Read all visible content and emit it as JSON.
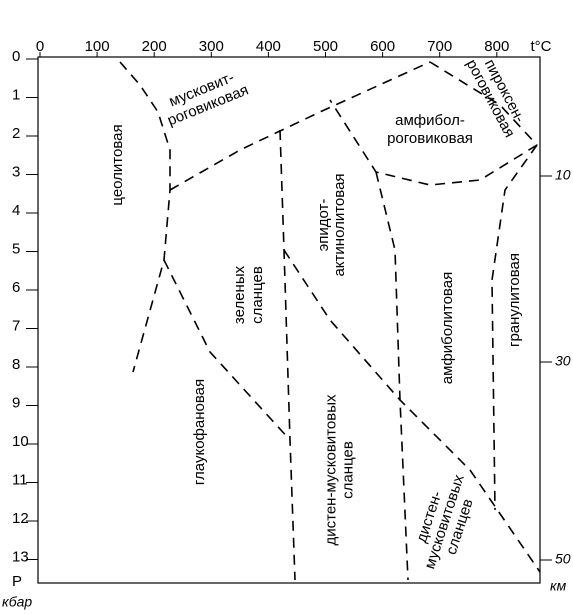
{
  "axes": {
    "top": {
      "ticks": [
        "0",
        "100",
        "200",
        "300",
        "400",
        "500",
        "600",
        "700",
        "800"
      ],
      "label": "t°C"
    },
    "left": {
      "ticks": [
        "0",
        "1",
        "2",
        "3",
        "4",
        "5",
        "6",
        "7",
        "8",
        "9",
        "10",
        "11",
        "12",
        "13"
      ],
      "label": "P",
      "unit": "кбар"
    },
    "right": {
      "ticks": [
        "10",
        "30",
        "50"
      ],
      "unit": "км"
    }
  },
  "facies": [
    {
      "lines": [
        "цеолитовая"
      ]
    },
    {
      "lines": [
        "мусковит-",
        "роговиковая"
      ]
    },
    {
      "lines": [
        "пироксен-",
        "роговиковая"
      ]
    },
    {
      "lines": [
        "амфибол-",
        "роговиковая"
      ]
    },
    {
      "lines": [
        "эпидот-",
        "актинолитовая"
      ]
    },
    {
      "lines": [
        "зеленых",
        "сланцев"
      ]
    },
    {
      "lines": [
        "амфиболитовая"
      ]
    },
    {
      "lines": [
        "гранулитовая"
      ]
    },
    {
      "lines": [
        "глаукофановая"
      ]
    },
    {
      "lines": [
        "дистен-мусковитовых",
        "сланцев"
      ]
    },
    {
      "lines": [
        "дистен-",
        "мусковитовых",
        "сланцев"
      ]
    }
  ]
}
